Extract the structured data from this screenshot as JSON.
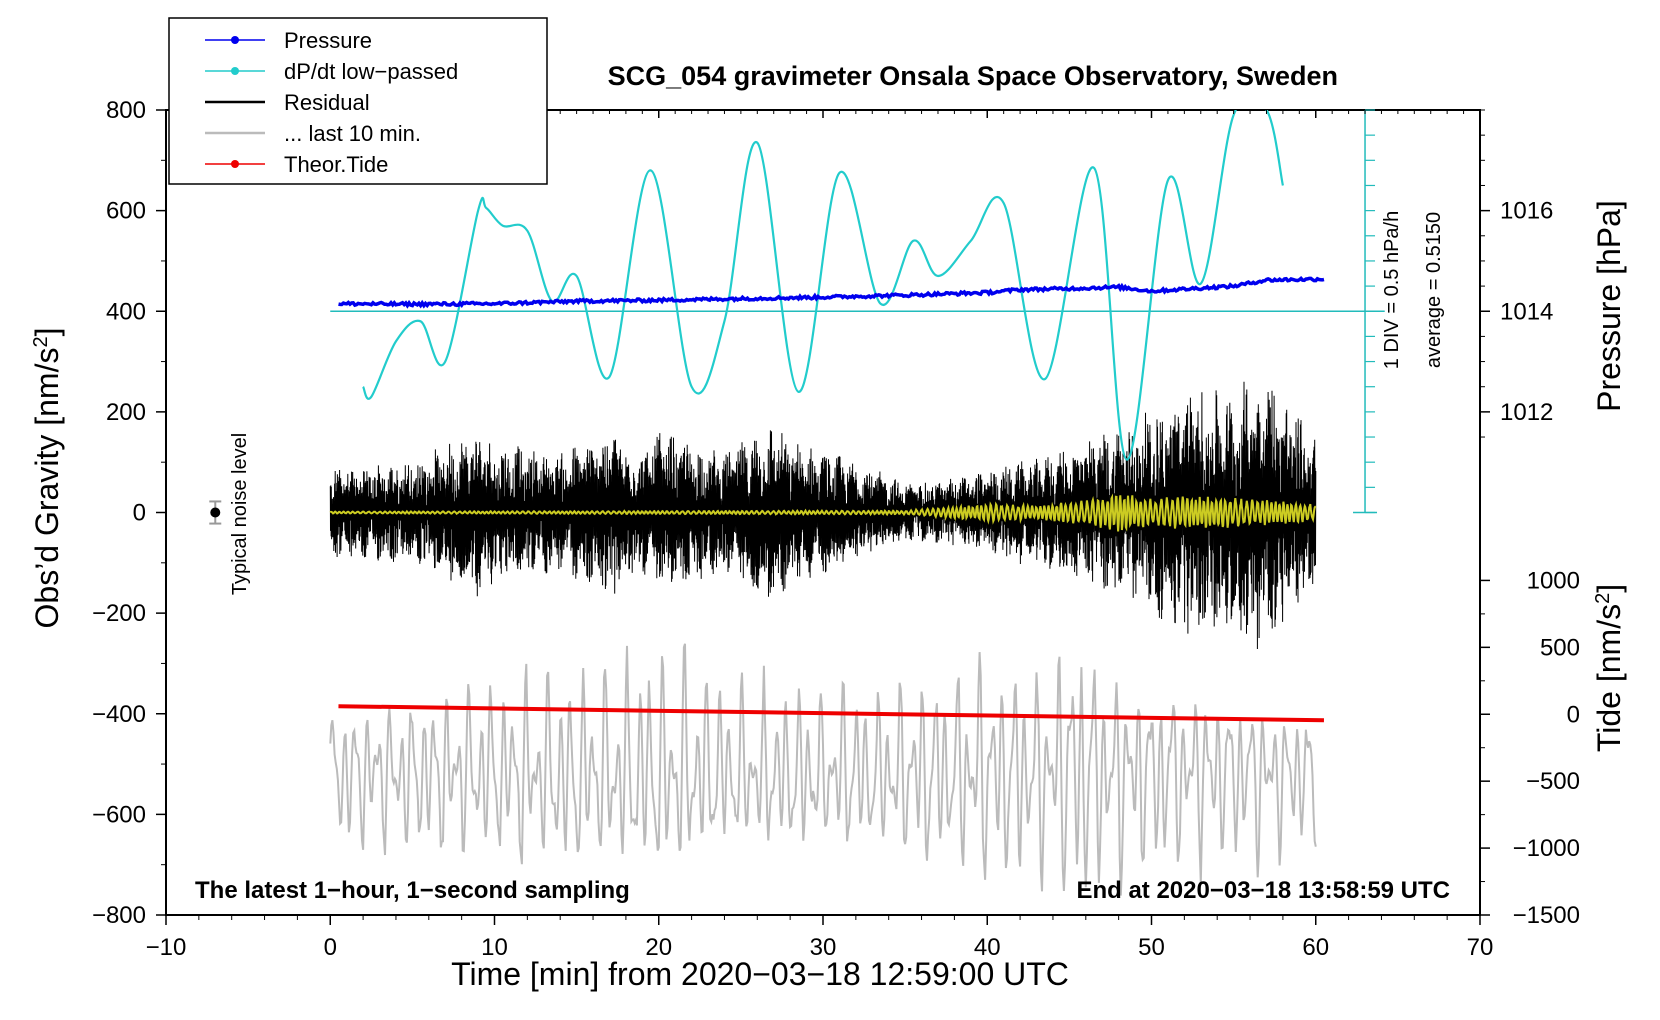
{
  "chart_data": {
    "type": "line",
    "title": "SCG_054 gravimeter Onsala Space Observatory, Sweden",
    "xlabel": "Time [min] from 2020−03−18 12:59:00 UTC",
    "ylabel": "Obs’d Gravity [nm/s²]",
    "ylabel_main": "Obs’d Gravity [nm/s",
    "ylabel_sup": "2",
    "ylabel_end": "]",
    "xlim": [
      -10,
      70
    ],
    "ylim": [
      -800,
      800
    ],
    "x_ticks": [
      -10,
      0,
      10,
      20,
      30,
      40,
      50,
      60,
      70
    ],
    "x_tick_labels": [
      "−10",
      "0",
      "10",
      "20",
      "30",
      "40",
      "50",
      "60",
      "70"
    ],
    "y_ticks": [
      -800,
      -600,
      -400,
      -200,
      0,
      200,
      400,
      600,
      800
    ],
    "y_tick_labels": [
      "−800",
      "−600",
      "−400",
      "−200",
      "0",
      "200",
      "400",
      "600",
      "800"
    ],
    "pressure_axis": {
      "label": "Pressure [hPa]",
      "ticks": [
        1012,
        1014,
        1016
      ],
      "tick_labels": [
        "1012",
        "1014",
        "1016"
      ],
      "gravity_equivalent": [
        200,
        400,
        600
      ]
    },
    "tide_axis": {
      "label_main": "Tide [nm/s",
      "label_sup": "2",
      "label_end": "]",
      "ticks": [
        -1500,
        -1000,
        -500,
        0,
        500,
        1000
      ],
      "tick_labels": [
        "−1500",
        "−1000",
        "−500",
        "0",
        "500",
        "1000"
      ],
      "range": [
        -1500,
        1000
      ],
      "gravity_range": [
        -800,
        -135
      ]
    },
    "dpdt_axis": {
      "label_div": "1 DIV = 0.5 hPa/h",
      "label_avg": "average = 0.5150",
      "baseline_gravity": 400,
      "top_gravity": 800,
      "bottom_gravity": 0,
      "minor_step": 50
    },
    "legend": {
      "position": "top-left",
      "entries": [
        {
          "name": "Pressure",
          "color": "#0000ee",
          "marker": true
        },
        {
          "name": "dP/dt low−passed",
          "color": "#22cccc",
          "marker": true
        },
        {
          "name": "Residual",
          "color": "#000000",
          "marker": false
        },
        {
          "name": "... last 10 min.",
          "color": "#bbbbbb",
          "marker": false
        },
        {
          "name": "Theor.Tide",
          "color": "#ee0000",
          "marker": true
        }
      ]
    },
    "annotations": {
      "bottom_left": "The latest 1−hour, 1−second sampling",
      "bottom_right": "End at 2020−03−18 13:58:59 UTC",
      "noise_label": "Typical noise level",
      "noise_x": -7,
      "noise_value": 0,
      "noise_err": 22
    },
    "series": [
      {
        "name": "Pressure",
        "color": "#0000ee",
        "unit_note": "plotted on gravity scale (hPa mapped: 1014 hPa = 400)",
        "x": [
          0.5,
          5,
          10,
          15,
          20,
          25,
          30,
          35,
          40,
          42,
          45,
          48,
          50,
          55,
          57,
          60.5
        ],
        "y": [
          415,
          414,
          415,
          420,
          422,
          425,
          428,
          432,
          437,
          443,
          445,
          448,
          440,
          450,
          462,
          464
        ],
        "noise": 3
      },
      {
        "name": "dP/dt low−passed",
        "color": "#22cccc",
        "x": [
          2,
          2.5,
          4,
          5.5,
          7,
          9,
          9.5,
          10.5,
          12,
          13.5,
          15,
          17,
          19.5,
          22,
          24,
          26,
          28.5,
          31,
          33.5,
          35.5,
          37,
          39,
          41,
          43.5,
          46.5,
          48.5,
          51,
          53,
          55,
          57,
          58
        ],
        "y": [
          250,
          230,
          340,
          380,
          300,
          600,
          605,
          570,
          560,
          420,
          470,
          270,
          680,
          250,
          380,
          735,
          240,
          675,
          415,
          540,
          470,
          540,
          615,
          265,
          685,
          105,
          660,
          455,
          790,
          810,
          650
        ]
      },
      {
        "name": "Residual",
        "color": "#000000",
        "x_range": [
          0,
          60
        ],
        "envelope": {
          "x": [
            0,
            5,
            9,
            10,
            14,
            17,
            19,
            20,
            24,
            27,
            28,
            32,
            35,
            37,
            40,
            44,
            46,
            50,
            52,
            55,
            56,
            57,
            60
          ],
          "amp": [
            90,
            105,
            170,
            140,
            120,
            175,
            120,
            165,
            120,
            185,
            145,
            105,
            60,
            65,
            85,
            120,
            145,
            205,
            250,
            240,
            280,
            290,
            150
          ]
        }
      },
      {
        "name": "... last 10 min.",
        "color": "#bbbbbb",
        "x_range": [
          0,
          60
        ],
        "center": -520,
        "envelope": {
          "x": [
            0,
            10,
            20,
            25,
            30,
            40,
            44,
            45,
            46,
            50,
            60
          ],
          "amp": [
            135,
            175,
            220,
            170,
            160,
            210,
            200,
            300,
            240,
            195,
            135
          ]
        }
      },
      {
        "name": "Yellow residual trace",
        "color": "#cccc22",
        "x_range": [
          0,
          60
        ],
        "envelope": {
          "x": [
            0,
            35,
            38,
            40,
            43,
            46,
            48,
            50,
            52,
            55,
            60
          ],
          "amp": [
            2,
            4,
            12,
            18,
            14,
            25,
            40,
            28,
            35,
            30,
            18
          ]
        }
      },
      {
        "name": "Theor.Tide",
        "color": "#ee0000",
        "unit_note": "tide nm/s² on right axis",
        "x": [
          0.5,
          60.5
        ],
        "y": [
          -385,
          -413
        ]
      }
    ]
  }
}
